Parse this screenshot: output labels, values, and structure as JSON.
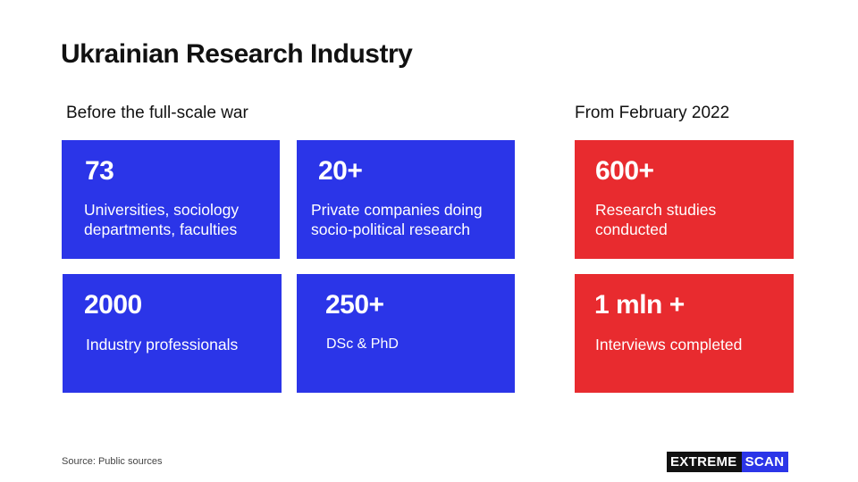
{
  "title": "Ukrainian Research Industry",
  "sections": {
    "before_label": "Before the full-scale war",
    "after_label": "From February 2022"
  },
  "colors": {
    "blue_card": "#2b35e8",
    "red_card": "#e82b2f",
    "text_dark": "#111111"
  },
  "cards": {
    "universities": {
      "value": "73",
      "desc": "Universities, sociology departments, faculties"
    },
    "private_companies": {
      "value": "20+",
      "desc": "Private companies doing socio-political research"
    },
    "studies": {
      "value": "600+",
      "desc": "Research studies conducted"
    },
    "professionals": {
      "value": "2000",
      "desc": "Industry professionals"
    },
    "dsc_phd": {
      "value": "250+",
      "desc": "DSc & PhD"
    },
    "interviews": {
      "value": "1 mln +",
      "desc": "Interviews completed"
    }
  },
  "footer": {
    "source": "Source: Public sources",
    "logo_part1": "EXTREME",
    "logo_part2": "SCAN"
  }
}
